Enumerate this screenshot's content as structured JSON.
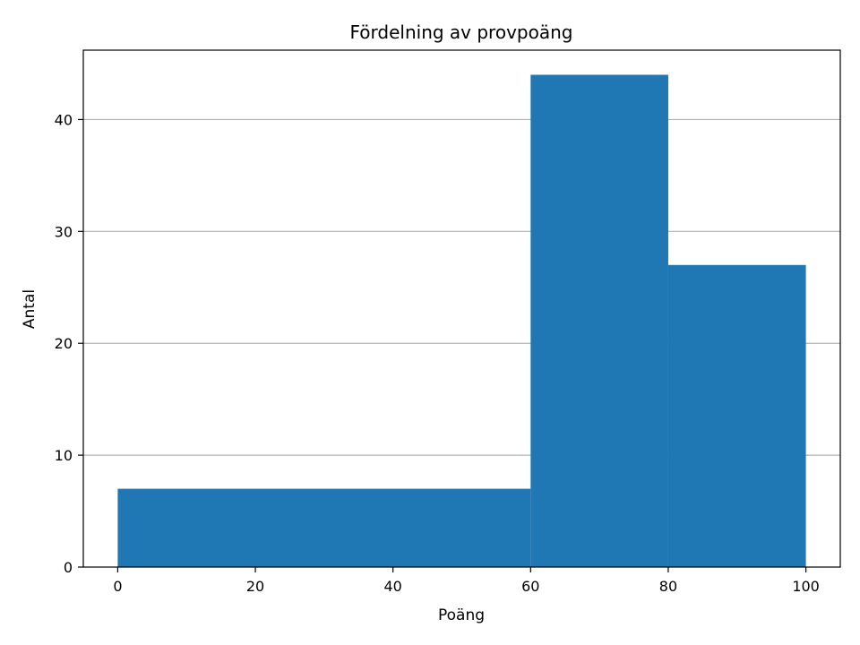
{
  "chart_data": {
    "type": "bar",
    "title": "Fördelning av provpoäng",
    "xlabel": "Poäng",
    "ylabel": "Antal",
    "bins": [
      {
        "x_start": 0,
        "x_end": 60,
        "count": 7
      },
      {
        "x_start": 60,
        "x_end": 80,
        "count": 44
      },
      {
        "x_start": 80,
        "x_end": 100,
        "count": 27
      }
    ],
    "xlim": [
      -5,
      105
    ],
    "ylim": [
      0,
      46.2
    ],
    "xticks": [
      0,
      20,
      40,
      60,
      80,
      100
    ],
    "yticks": [
      0,
      10,
      20,
      30,
      40
    ],
    "grid": {
      "axis": "y",
      "on": true
    },
    "colors": {
      "bar": "#1f77b4",
      "grid": "#b0b0b0",
      "axis": "#000000"
    }
  }
}
